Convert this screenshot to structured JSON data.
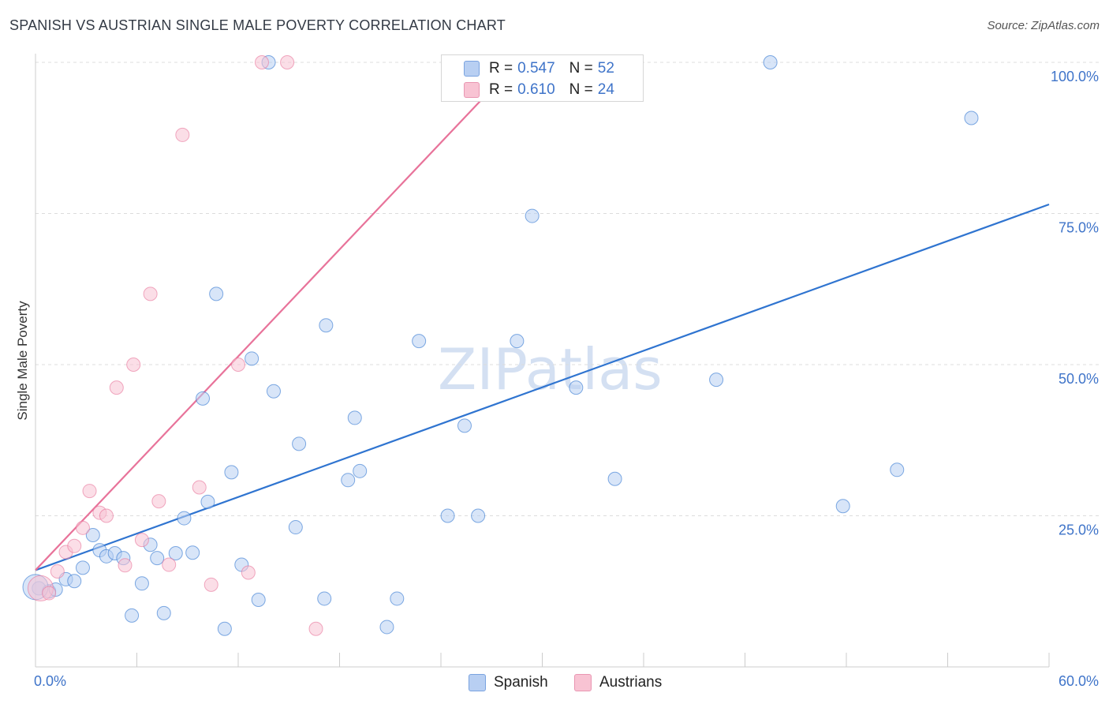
{
  "title": "SPANISH VS AUSTRIAN SINGLE MALE POVERTY CORRELATION CHART",
  "source": "Source: ZipAtlas.com",
  "watermark": {
    "main": "ZIP",
    "sub": "atlas"
  },
  "colors": {
    "spanish": "#2f74d0",
    "austrian": "#e8739a",
    "spanish_fill": "#b8cff2",
    "austrian_fill": "#f8c3d3",
    "axis_text": "#3f74c9"
  },
  "legend_top": {
    "rows": [
      {
        "series": "Spanish",
        "r_label": "R =",
        "r_value": "0.547",
        "n_label": "N =",
        "n_value": "52"
      },
      {
        "series": "Austrians",
        "r_label": "R =",
        "r_value": "0.610",
        "n_label": "N =",
        "n_value": "24"
      }
    ]
  },
  "legend_bottom": [
    "Spanish",
    "Austrians"
  ],
  "chart_data": {
    "type": "scatter",
    "title": "SPANISH VS AUSTRIAN SINGLE MALE POVERTY CORRELATION CHART",
    "xlabel": "",
    "ylabel": "Single Male Poverty",
    "xlim": [
      0,
      60
    ],
    "ylim": [
      0,
      100
    ],
    "x_tick_labels": [
      "0.0%",
      "60.0%"
    ],
    "y_ticks": [
      25,
      50,
      75,
      100
    ],
    "y_tick_labels": [
      "25.0%",
      "50.0%",
      "75.0%",
      "100.0%"
    ],
    "grid": "horizontal dashed",
    "legend": "top-center",
    "series": [
      {
        "name": "Spanish",
        "points": [
          [
            0.2,
            13.0
          ],
          [
            0.8,
            12.5
          ],
          [
            1.2,
            12.8
          ],
          [
            1.8,
            14.5
          ],
          [
            2.3,
            14.2
          ],
          [
            2.8,
            16.4
          ],
          [
            3.4,
            21.8
          ],
          [
            3.8,
            19.3
          ],
          [
            4.2,
            18.3
          ],
          [
            4.7,
            18.8
          ],
          [
            5.2,
            18.0
          ],
          [
            5.7,
            8.5
          ],
          [
            6.3,
            13.8
          ],
          [
            6.8,
            20.2
          ],
          [
            7.2,
            18.0
          ],
          [
            7.6,
            8.9
          ],
          [
            8.3,
            18.8
          ],
          [
            8.8,
            24.6
          ],
          [
            9.3,
            18.9
          ],
          [
            9.9,
            44.4
          ],
          [
            10.2,
            27.3
          ],
          [
            10.7,
            61.7
          ],
          [
            11.2,
            6.3
          ],
          [
            11.6,
            32.2
          ],
          [
            12.2,
            16.9
          ],
          [
            12.8,
            51.0
          ],
          [
            13.2,
            11.1
          ],
          [
            13.8,
            100.0
          ],
          [
            14.1,
            45.6
          ],
          [
            15.4,
            23.1
          ],
          [
            15.6,
            36.9
          ],
          [
            17.1,
            11.3
          ],
          [
            17.2,
            56.5
          ],
          [
            18.5,
            30.9
          ],
          [
            18.9,
            41.2
          ],
          [
            19.2,
            32.4
          ],
          [
            20.8,
            6.6
          ],
          [
            21.4,
            11.3
          ],
          [
            22.7,
            53.9
          ],
          [
            24.4,
            25.0
          ],
          [
            25.4,
            39.9
          ],
          [
            26.2,
            25.0
          ],
          [
            28.5,
            53.9
          ],
          [
            29.4,
            74.6
          ],
          [
            32.0,
            46.2
          ],
          [
            34.3,
            31.1
          ],
          [
            40.3,
            47.5
          ],
          [
            43.5,
            100.0
          ],
          [
            47.8,
            26.6
          ],
          [
            51.0,
            32.6
          ],
          [
            55.4,
            90.8
          ],
          [
            0.0,
            13.2
          ]
        ]
      },
      {
        "name": "Austrians",
        "points": [
          [
            0.3,
            13.0
          ],
          [
            0.8,
            12.2
          ],
          [
            1.3,
            15.8
          ],
          [
            1.8,
            19.0
          ],
          [
            2.3,
            20.0
          ],
          [
            2.8,
            23.0
          ],
          [
            3.2,
            29.1
          ],
          [
            3.8,
            25.5
          ],
          [
            4.2,
            25.0
          ],
          [
            4.8,
            46.2
          ],
          [
            5.3,
            16.8
          ],
          [
            5.8,
            50.0
          ],
          [
            6.3,
            21.0
          ],
          [
            6.8,
            61.7
          ],
          [
            7.3,
            27.4
          ],
          [
            7.9,
            16.9
          ],
          [
            8.7,
            88.0
          ],
          [
            9.7,
            29.7
          ],
          [
            12.0,
            50.0
          ],
          [
            12.6,
            15.6
          ],
          [
            13.4,
            100.0
          ],
          [
            14.9,
            100.0
          ],
          [
            16.6,
            6.3
          ],
          [
            10.4,
            13.6
          ]
        ]
      }
    ],
    "trendlines": [
      {
        "series": "Spanish",
        "from": [
          0,
          16.0
        ],
        "to": [
          60,
          76.5
        ]
      },
      {
        "series": "Austrians",
        "from": [
          0,
          16.0
        ],
        "to": [
          28.5,
          100.0
        ]
      }
    ]
  }
}
